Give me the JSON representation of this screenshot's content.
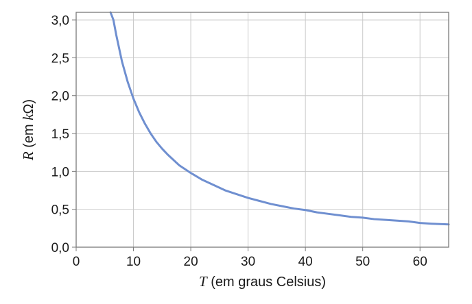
{
  "chart_data": {
    "type": "line",
    "xlabel": {
      "variable": "T",
      "text": " (em graus Celsius)"
    },
    "ylabel": {
      "prefix": "",
      "variable": "R",
      "middle": " (em ",
      "unit_var": "k",
      "unit_rest": "Ω)"
    },
    "xlim": [
      0,
      65
    ],
    "ylim": [
      0,
      3.1
    ],
    "x_ticks": [
      0,
      10,
      20,
      30,
      40,
      50,
      60
    ],
    "x_tick_labels": [
      "0",
      "10",
      "20",
      "30",
      "40",
      "50",
      "60"
    ],
    "y_ticks": [
      0,
      0.5,
      1.0,
      1.5,
      2.0,
      2.5,
      3.0
    ],
    "y_tick_labels": [
      "0,0",
      "0,5",
      "1,0",
      "1,5",
      "2,0",
      "2,5",
      "3,0"
    ],
    "grid": true,
    "series": [
      {
        "color": "#6f8fd0",
        "x": [
          6.0,
          6.5,
          7,
          8,
          9,
          10,
          11,
          12,
          13,
          14,
          15,
          16,
          18,
          20,
          22,
          24,
          26,
          28,
          30,
          32,
          34,
          36,
          38,
          40,
          42,
          44,
          46,
          48,
          50,
          52,
          54,
          56,
          58,
          60,
          62,
          65
        ],
        "y": [
          3.1,
          3.0,
          2.8,
          2.45,
          2.18,
          1.96,
          1.78,
          1.63,
          1.5,
          1.39,
          1.3,
          1.22,
          1.08,
          0.98,
          0.89,
          0.82,
          0.75,
          0.7,
          0.65,
          0.61,
          0.57,
          0.54,
          0.51,
          0.49,
          0.46,
          0.44,
          0.42,
          0.4,
          0.39,
          0.37,
          0.36,
          0.35,
          0.34,
          0.32,
          0.31,
          0.3
        ]
      }
    ]
  }
}
